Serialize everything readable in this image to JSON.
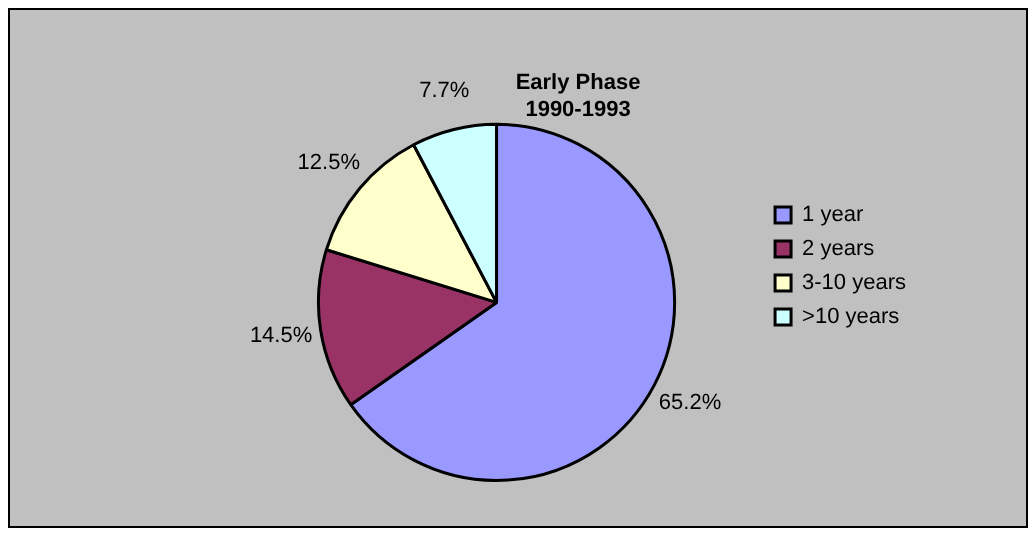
{
  "chart_data": {
    "type": "pie",
    "title": "Early Phase",
    "subtitle": "1990-1993",
    "categories": [
      "1 year",
      "2 years",
      "3-10 years",
      ">10 years"
    ],
    "values": [
      65.2,
      14.5,
      12.5,
      7.7
    ],
    "colors": [
      "#9999ff",
      "#993366",
      "#ffffcc",
      "#ccffff"
    ],
    "value_labels": [
      "65.2%",
      "14.5%",
      "12.5%",
      "7.7%"
    ],
    "legend": "right"
  }
}
